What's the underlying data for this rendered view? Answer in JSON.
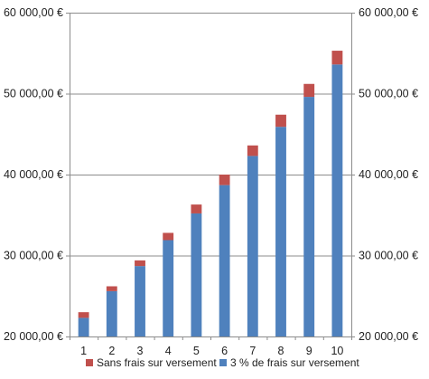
{
  "chart_data": {
    "type": "bar",
    "stacked": true,
    "categories": [
      "1",
      "2",
      "3",
      "4",
      "5",
      "6",
      "7",
      "8",
      "9",
      "10"
    ],
    "series": [
      {
        "name": "3 % de frais sur versement",
        "color": "#4f81bd",
        "values": [
          22300,
          25600,
          28700,
          31900,
          35200,
          38700,
          42300,
          45900,
          49600,
          53600
        ]
      },
      {
        "name": "Sans frais sur versement",
        "color": "#c0504d",
        "stack_top": [
          23000,
          26200,
          29400,
          32800,
          36300,
          40000,
          43600,
          47400,
          51200,
          55300
        ]
      }
    ],
    "ylim": [
      20000,
      60000
    ],
    "y_ticks": [
      20000,
      30000,
      40000,
      50000,
      60000
    ],
    "y_tick_labels": [
      "20 000,00 €",
      "30 000,00 €",
      "40 000,00 €",
      "50 000,00 €",
      "60 000,00 €"
    ],
    "secondary_y_axis": true,
    "gridlines": true,
    "legend": {
      "position": "bottom",
      "items": [
        "Sans frais sur versement",
        "3 % de frais sur versement"
      ]
    },
    "colors": {
      "grid": "#8c8c8c",
      "axis": "#8c8c8c"
    }
  }
}
